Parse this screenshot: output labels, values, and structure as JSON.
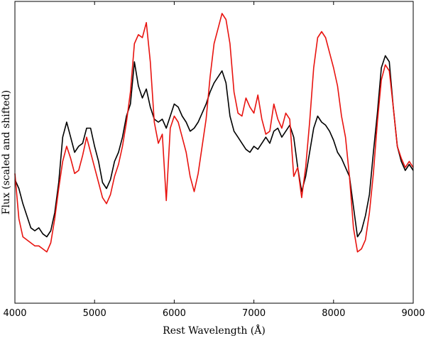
{
  "chart_data": {
    "type": "line",
    "title": "",
    "xlabel": "Rest Wavelength (Å)",
    "ylabel": "Flux (scaled and shifted)",
    "xlim": [
      4000,
      9000
    ],
    "ylim": [
      0,
      1
    ],
    "xticks": [
      4000,
      5000,
      6000,
      7000,
      8000,
      9000
    ],
    "yticks_shown": false,
    "grid": false,
    "legend": "none",
    "series": [
      {
        "color": "#000000",
        "points": [
          [
            4000,
            0.41
          ],
          [
            4050,
            0.38
          ],
          [
            4100,
            0.33
          ],
          [
            4150,
            0.29
          ],
          [
            4200,
            0.25
          ],
          [
            4250,
            0.24
          ],
          [
            4300,
            0.25
          ],
          [
            4350,
            0.23
          ],
          [
            4400,
            0.22
          ],
          [
            4450,
            0.24
          ],
          [
            4500,
            0.3
          ],
          [
            4550,
            0.4
          ],
          [
            4600,
            0.55
          ],
          [
            4650,
            0.6
          ],
          [
            4700,
            0.55
          ],
          [
            4750,
            0.5
          ],
          [
            4800,
            0.52
          ],
          [
            4850,
            0.53
          ],
          [
            4900,
            0.58
          ],
          [
            4950,
            0.58
          ],
          [
            5000,
            0.52
          ],
          [
            5050,
            0.47
          ],
          [
            5100,
            0.4
          ],
          [
            5150,
            0.38
          ],
          [
            5200,
            0.41
          ],
          [
            5250,
            0.47
          ],
          [
            5300,
            0.5
          ],
          [
            5350,
            0.55
          ],
          [
            5400,
            0.62
          ],
          [
            5450,
            0.66
          ],
          [
            5500,
            0.8
          ],
          [
            5550,
            0.72
          ],
          [
            5600,
            0.68
          ],
          [
            5650,
            0.71
          ],
          [
            5700,
            0.65
          ],
          [
            5750,
            0.61
          ],
          [
            5800,
            0.6
          ],
          [
            5850,
            0.61
          ],
          [
            5900,
            0.58
          ],
          [
            5950,
            0.62
          ],
          [
            6000,
            0.66
          ],
          [
            6050,
            0.65
          ],
          [
            6100,
            0.62
          ],
          [
            6150,
            0.6
          ],
          [
            6200,
            0.57
          ],
          [
            6250,
            0.58
          ],
          [
            6300,
            0.6
          ],
          [
            6350,
            0.63
          ],
          [
            6400,
            0.66
          ],
          [
            6450,
            0.7
          ],
          [
            6500,
            0.73
          ],
          [
            6550,
            0.75
          ],
          [
            6600,
            0.77
          ],
          [
            6650,
            0.73
          ],
          [
            6700,
            0.62
          ],
          [
            6750,
            0.57
          ],
          [
            6800,
            0.55
          ],
          [
            6850,
            0.53
          ],
          [
            6900,
            0.51
          ],
          [
            6950,
            0.5
          ],
          [
            7000,
            0.52
          ],
          [
            7050,
            0.51
          ],
          [
            7100,
            0.53
          ],
          [
            7150,
            0.55
          ],
          [
            7200,
            0.53
          ],
          [
            7250,
            0.57
          ],
          [
            7300,
            0.58
          ],
          [
            7350,
            0.55
          ],
          [
            7400,
            0.57
          ],
          [
            7450,
            0.59
          ],
          [
            7500,
            0.55
          ],
          [
            7550,
            0.45
          ],
          [
            7600,
            0.37
          ],
          [
            7650,
            0.42
          ],
          [
            7700,
            0.5
          ],
          [
            7750,
            0.58
          ],
          [
            7800,
            0.62
          ],
          [
            7850,
            0.6
          ],
          [
            7900,
            0.59
          ],
          [
            7950,
            0.57
          ],
          [
            8000,
            0.54
          ],
          [
            8050,
            0.5
          ],
          [
            8100,
            0.48
          ],
          [
            8150,
            0.45
          ],
          [
            8200,
            0.42
          ],
          [
            8250,
            0.32
          ],
          [
            8300,
            0.22
          ],
          [
            8350,
            0.24
          ],
          [
            8400,
            0.29
          ],
          [
            8450,
            0.36
          ],
          [
            8500,
            0.5
          ],
          [
            8550,
            0.63
          ],
          [
            8600,
            0.78
          ],
          [
            8650,
            0.82
          ],
          [
            8700,
            0.8
          ],
          [
            8750,
            0.65
          ],
          [
            8800,
            0.52
          ],
          [
            8850,
            0.47
          ],
          [
            8900,
            0.44
          ],
          [
            8950,
            0.46
          ],
          [
            9000,
            0.44
          ]
        ]
      },
      {
        "color": "#e8130f",
        "points": [
          [
            4000,
            0.43
          ],
          [
            4050,
            0.28
          ],
          [
            4100,
            0.22
          ],
          [
            4150,
            0.21
          ],
          [
            4200,
            0.2
          ],
          [
            4250,
            0.19
          ],
          [
            4300,
            0.19
          ],
          [
            4350,
            0.18
          ],
          [
            4400,
            0.17
          ],
          [
            4450,
            0.2
          ],
          [
            4500,
            0.28
          ],
          [
            4550,
            0.38
          ],
          [
            4600,
            0.47
          ],
          [
            4650,
            0.52
          ],
          [
            4700,
            0.48
          ],
          [
            4750,
            0.43
          ],
          [
            4800,
            0.44
          ],
          [
            4850,
            0.49
          ],
          [
            4900,
            0.55
          ],
          [
            4950,
            0.5
          ],
          [
            5000,
            0.45
          ],
          [
            5050,
            0.4
          ],
          [
            5100,
            0.35
          ],
          [
            5150,
            0.33
          ],
          [
            5200,
            0.36
          ],
          [
            5250,
            0.42
          ],
          [
            5300,
            0.46
          ],
          [
            5350,
            0.52
          ],
          [
            5400,
            0.6
          ],
          [
            5450,
            0.7
          ],
          [
            5500,
            0.86
          ],
          [
            5550,
            0.89
          ],
          [
            5600,
            0.88
          ],
          [
            5650,
            0.93
          ],
          [
            5700,
            0.8
          ],
          [
            5750,
            0.6
          ],
          [
            5800,
            0.53
          ],
          [
            5850,
            0.56
          ],
          [
            5900,
            0.34
          ],
          [
            5950,
            0.58
          ],
          [
            6000,
            0.62
          ],
          [
            6050,
            0.6
          ],
          [
            6100,
            0.55
          ],
          [
            6150,
            0.5
          ],
          [
            6200,
            0.42
          ],
          [
            6250,
            0.37
          ],
          [
            6300,
            0.43
          ],
          [
            6350,
            0.52
          ],
          [
            6400,
            0.61
          ],
          [
            6450,
            0.75
          ],
          [
            6500,
            0.86
          ],
          [
            6550,
            0.91
          ],
          [
            6600,
            0.96
          ],
          [
            6650,
            0.94
          ],
          [
            6700,
            0.86
          ],
          [
            6750,
            0.7
          ],
          [
            6800,
            0.63
          ],
          [
            6850,
            0.62
          ],
          [
            6900,
            0.68
          ],
          [
            6950,
            0.65
          ],
          [
            7000,
            0.63
          ],
          [
            7050,
            0.69
          ],
          [
            7100,
            0.61
          ],
          [
            7150,
            0.56
          ],
          [
            7200,
            0.57
          ],
          [
            7250,
            0.66
          ],
          [
            7300,
            0.61
          ],
          [
            7350,
            0.58
          ],
          [
            7400,
            0.63
          ],
          [
            7450,
            0.61
          ],
          [
            7500,
            0.42
          ],
          [
            7550,
            0.45
          ],
          [
            7600,
            0.35
          ],
          [
            7650,
            0.45
          ],
          [
            7700,
            0.6
          ],
          [
            7750,
            0.78
          ],
          [
            7800,
            0.88
          ],
          [
            7850,
            0.9
          ],
          [
            7900,
            0.88
          ],
          [
            7950,
            0.83
          ],
          [
            8000,
            0.78
          ],
          [
            8050,
            0.72
          ],
          [
            8100,
            0.62
          ],
          [
            8150,
            0.55
          ],
          [
            8200,
            0.42
          ],
          [
            8250,
            0.25
          ],
          [
            8300,
            0.17
          ],
          [
            8350,
            0.18
          ],
          [
            8400,
            0.21
          ],
          [
            8450,
            0.3
          ],
          [
            8500,
            0.43
          ],
          [
            8550,
            0.6
          ],
          [
            8600,
            0.74
          ],
          [
            8650,
            0.79
          ],
          [
            8700,
            0.77
          ],
          [
            8750,
            0.65
          ],
          [
            8800,
            0.52
          ],
          [
            8850,
            0.48
          ],
          [
            8900,
            0.45
          ],
          [
            8950,
            0.47
          ],
          [
            9000,
            0.45
          ]
        ]
      }
    ]
  }
}
